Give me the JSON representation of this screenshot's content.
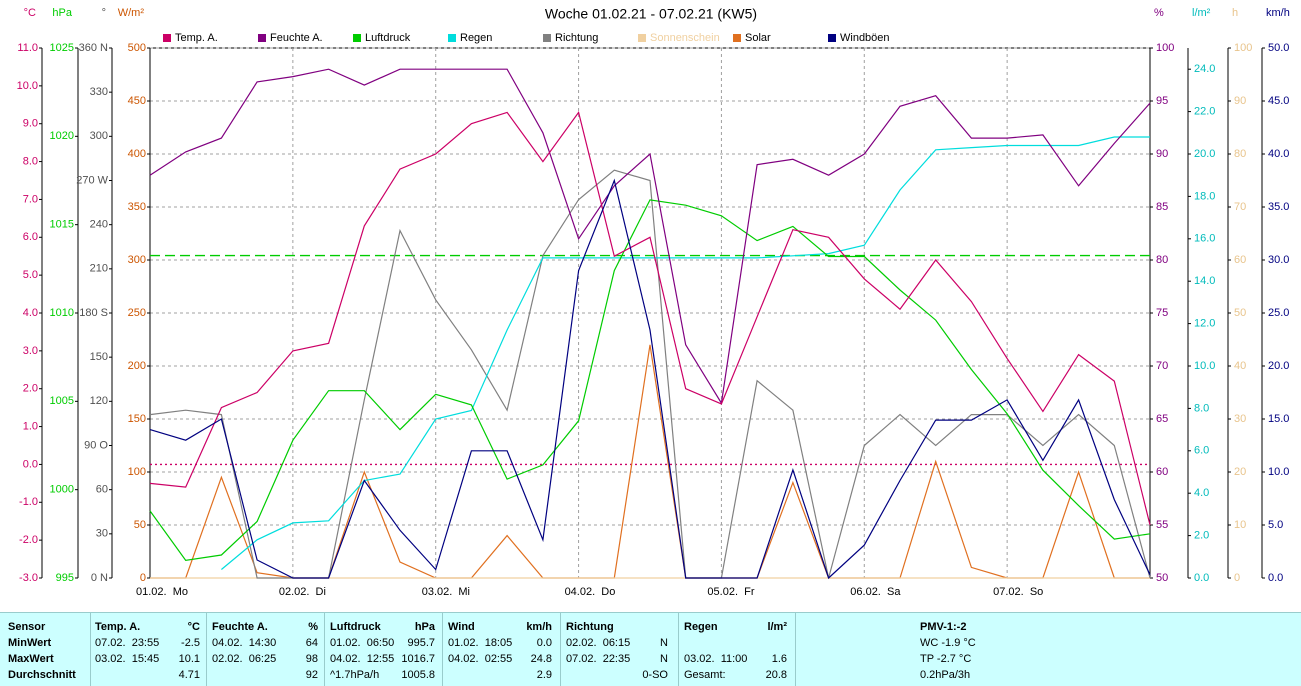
{
  "chart_data": {
    "type": "line",
    "title": "Woche 01.02.21 - 07.02.21 (KW5)",
    "x": [
      0,
      0.25,
      0.5,
      0.75,
      1,
      1.25,
      1.5,
      1.75,
      2,
      2.25,
      2.5,
      2.75,
      3,
      3.25,
      3.5,
      3.75,
      4,
      4.25,
      4.5,
      4.75,
      5,
      5.25,
      5.5,
      5.75,
      6,
      6.25,
      6.5,
      6.75,
      7
    ],
    "xlim": [
      0,
      7
    ],
    "xticks": [
      {
        "value": 0,
        "label": "01.02.  Mo"
      },
      {
        "value": 1,
        "label": "02.02.  Di"
      },
      {
        "value": 2,
        "label": "03.02.  Mi"
      },
      {
        "value": 3,
        "label": "04.02.  Do"
      },
      {
        "value": 4,
        "label": "05.02.  Fr"
      },
      {
        "value": 5,
        "label": "06.02.  Sa"
      },
      {
        "value": 6,
        "label": "07.02.  So"
      }
    ],
    "grid": true,
    "axes": [
      {
        "unit": "°C",
        "color": "#cc0066",
        "side": "left",
        "lim": [
          -3,
          11
        ],
        "ticks": [
          {
            "value": -3,
            "label": "-3.0"
          },
          {
            "value": -2,
            "label": "-2.0"
          },
          {
            "value": -1,
            "label": "-1.0"
          },
          {
            "value": 0,
            "label": "0.0"
          },
          {
            "value": 1,
            "label": "1.0"
          },
          {
            "value": 2,
            "label": "2.0"
          },
          {
            "value": 3,
            "label": "3.0"
          },
          {
            "value": 4,
            "label": "4.0"
          },
          {
            "value": 5,
            "label": "5.0"
          },
          {
            "value": 6,
            "label": "6.0"
          },
          {
            "value": 7,
            "label": "7.0"
          },
          {
            "value": 8,
            "label": "8.0"
          },
          {
            "value": 9,
            "label": "9.0"
          },
          {
            "value": 10,
            "label": "10.0"
          },
          {
            "value": 11,
            "label": "11.0"
          }
        ]
      },
      {
        "unit": "hPa",
        "color": "#00cc00",
        "side": "left",
        "lim": [
          995,
          1025
        ],
        "ticks": [
          995,
          1000,
          1005,
          1010,
          1015,
          1020,
          1025
        ]
      },
      {
        "unit": "°",
        "color": "#505050",
        "side": "left",
        "lim": [
          0,
          360
        ],
        "ticks": [
          {
            "value": 0,
            "label": "0 N"
          },
          30,
          60,
          {
            "value": 90,
            "label": "90 O"
          },
          120,
          150,
          {
            "value": 180,
            "label": "180 S"
          },
          210,
          240,
          {
            "value": 270,
            "label": "270 W"
          },
          300,
          330,
          {
            "value": 360,
            "label": "360 N"
          }
        ]
      },
      {
        "unit": "W/m²",
        "color": "#cc5500",
        "side": "left",
        "lim": [
          0,
          500
        ],
        "ticks": [
          0,
          50,
          100,
          150,
          200,
          250,
          300,
          350,
          400,
          450,
          500
        ]
      },
      {
        "unit": "%",
        "color": "#800080",
        "side": "right",
        "lim": [
          50,
          100
        ],
        "ticks": [
          50,
          55,
          60,
          65,
          70,
          75,
          80,
          85,
          90,
          95,
          100
        ]
      },
      {
        "unit": "l/m²",
        "color": "#00bbbb",
        "side": "right",
        "lim": [
          0,
          25
        ],
        "ticks": [
          {
            "value": 0,
            "label": "0.0"
          },
          {
            "value": 2,
            "label": "2.0"
          },
          {
            "value": 4,
            "label": "4.0"
          },
          {
            "value": 6,
            "label": "6.0"
          },
          {
            "value": 8,
            "label": "8.0"
          },
          {
            "value": 10,
            "label": "10.0"
          },
          {
            "value": 12,
            "label": "12.0"
          },
          {
            "value": 14,
            "label": "14.0"
          },
          {
            "value": 16,
            "label": "16.0"
          },
          {
            "value": 18,
            "label": "18.0"
          },
          {
            "value": 20,
            "label": "20.0"
          },
          {
            "value": 22,
            "label": "22.0"
          },
          {
            "value": 24,
            "label": "24.0"
          }
        ]
      },
      {
        "unit": "h",
        "color": "#e8c48c",
        "side": "right",
        "lim": [
          0,
          100
        ],
        "ticks": [
          0,
          10,
          20,
          30,
          40,
          50,
          60,
          70,
          80,
          90,
          100
        ]
      },
      {
        "unit": "km/h",
        "color": "#000080",
        "side": "right",
        "lim": [
          0,
          50
        ],
        "ticks": [
          {
            "value": 0,
            "label": "0.0"
          },
          {
            "value": 5,
            "label": "5.0"
          },
          {
            "value": 10,
            "label": "10.0"
          },
          {
            "value": 15,
            "label": "15.0"
          },
          {
            "value": 20,
            "label": "20.0"
          },
          {
            "value": 25,
            "label": "25.0"
          },
          {
            "value": 30,
            "label": "30.0"
          },
          {
            "value": 35,
            "label": "35.0"
          },
          {
            "value": 40,
            "label": "40.0"
          },
          {
            "value": 45,
            "label": "45.0"
          },
          {
            "value": 50,
            "label": "50.0"
          }
        ]
      }
    ],
    "reference_lines": [
      {
        "axis": 1,
        "value": 1013.25,
        "color": "#00cc00",
        "style": "dashed"
      },
      {
        "axis": 0,
        "value": 0,
        "color": "#cc0066",
        "style": "dotted"
      }
    ],
    "series": [
      {
        "name": "Temp. A.",
        "color": "#cc0066",
        "axis": 0,
        "values": [
          -0.5,
          -0.6,
          1.5,
          1.9,
          3.0,
          3.2,
          6.3,
          7.8,
          8.2,
          9.0,
          9.3,
          8.0,
          9.3,
          5.5,
          6.0,
          2.0,
          1.6,
          3.9,
          6.2,
          6.0,
          4.9,
          4.1,
          5.4,
          4.3,
          2.8,
          1.4,
          2.9,
          2.2,
          -1.6
        ]
      },
      {
        "name": "Feuchte A.",
        "color": "#800080",
        "axis": 4,
        "values": [
          88.0,
          90.2,
          91.5,
          96.8,
          97.3,
          98.0,
          96.5,
          98.0,
          98.0,
          98.0,
          98.0,
          92.0,
          82.0,
          87.0,
          90.0,
          72.0,
          66.5,
          89.0,
          89.5,
          88.0,
          90.0,
          94.5,
          95.5,
          91.5,
          91.5,
          91.8,
          87.0,
          91.0,
          94.8
        ]
      },
      {
        "name": "Luftdruck",
        "color": "#00cc00",
        "axis": 1,
        "values": [
          998.8,
          996.0,
          996.3,
          998.2,
          1002.8,
          1005.6,
          1005.6,
          1003.4,
          1005.4,
          1004.8,
          1000.6,
          1001.4,
          1003.9,
          1012.4,
          1016.4,
          1016.1,
          1015.5,
          1014.1,
          1014.9,
          1013.2,
          1013.2,
          1011.3,
          1009.6,
          1006.8,
          1004.3,
          1001.1,
          999.1,
          997.2,
          997.5
        ]
      },
      {
        "name": "Regen",
        "color": "#00dddd",
        "axis": 5,
        "values": [
          null,
          null,
          0.4,
          1.8,
          2.6,
          2.7,
          4.6,
          4.9,
          7.5,
          7.9,
          11.7,
          15.1,
          15.1,
          15.1,
          15.1,
          15.1,
          15.1,
          15.1,
          15.2,
          15.3,
          15.7,
          18.3,
          20.2,
          20.3,
          20.4,
          20.4,
          20.4,
          20.8,
          20.8
        ]
      },
      {
        "name": "Richtung",
        "color": "#808080",
        "axis": 2,
        "values": [
          111,
          114,
          111,
          0,
          0,
          0,
          121,
          236,
          189,
          155,
          114,
          219,
          257,
          277,
          270,
          0,
          0,
          134,
          114,
          0,
          90,
          111,
          90,
          111,
          111,
          90,
          111,
          90,
          0
        ]
      },
      {
        "name": "Sonnenschein",
        "color": "#f0d0a0",
        "axis": 6,
        "values": [
          0,
          0,
          0,
          0,
          0,
          0,
          0,
          0,
          0,
          0,
          0,
          0,
          0,
          0,
          0,
          0,
          0,
          0,
          0,
          0,
          0,
          0,
          0,
          0,
          0,
          0,
          0,
          0,
          0
        ]
      },
      {
        "name": "Solar",
        "color": "#e07020",
        "axis": 3,
        "values": [
          0,
          0,
          95,
          5,
          0,
          0,
          100,
          15,
          0,
          0,
          40,
          0,
          0,
          0,
          220,
          0,
          0,
          0,
          90,
          0,
          0,
          0,
          110,
          10,
          0,
          0,
          100,
          0,
          0
        ]
      },
      {
        "name": "Windböen",
        "color": "#000080",
        "axis": 7,
        "values": [
          14.0,
          13.0,
          15.0,
          1.7,
          0,
          0,
          9.2,
          4.5,
          0.8,
          12.0,
          12.0,
          3.6,
          29.0,
          37.5,
          23.4,
          0,
          0,
          0,
          10.2,
          0,
          3.1,
          9.2,
          14.9,
          14.9,
          16.8,
          11.1,
          16.8,
          7.4,
          0.3
        ]
      }
    ]
  },
  "table": {
    "header": [
      {
        "name": "Sensor"
      },
      {
        "name": "Temp. A.",
        "unit": "°C"
      },
      {
        "name": "Feuchte A.",
        "unit": "%"
      },
      {
        "name": "Luftdruck",
        "unit": "hPa"
      },
      {
        "name": "Wind",
        "unit": "km/h"
      },
      {
        "name": "Richtung"
      },
      {
        "name": "Regen",
        "unit": "l/m²"
      },
      {
        "name": "PMV-1:-2"
      }
    ],
    "rows": [
      {
        "label": "MinWert",
        "cells": [
          {
            "time": "07.02.  23:55",
            "value": "-2.5"
          },
          {
            "time": "04.02.  14:30",
            "value": "64"
          },
          {
            "time": "01.02.  06:50",
            "value": "995.7"
          },
          {
            "time": "01.02.  18:05",
            "value": "0.0"
          },
          {
            "time": "02.02.  06:15",
            "value": "N"
          },
          null,
          {
            "time": "WC -1.9 °C"
          }
        ]
      },
      {
        "label": "MaxWert",
        "cells": [
          {
            "time": "03.02.  15:45",
            "value": "10.1"
          },
          {
            "time": "02.02.  06:25",
            "value": "98"
          },
          {
            "time": "04.02.  12:55",
            "value": "1016.7"
          },
          {
            "time": "04.02.  02:55",
            "value": "24.8"
          },
          {
            "time": "07.02.  22:35",
            "value": "N"
          },
          {
            "time": "03.02.  11:00",
            "value": "1.6"
          },
          {
            "time": "TP -2.7 °C"
          }
        ]
      },
      {
        "label": "Durchschnitt",
        "cells": [
          {
            "value": "4.71"
          },
          {
            "value": "92"
          },
          {
            "time": "^1.7hPa/h",
            "value": "1005.8"
          },
          {
            "value": "2.9"
          },
          {
            "value": "0-SO"
          },
          {
            "time": "Gesamt:",
            "value": "20.8"
          },
          {
            "time": "0.2hPa/3h"
          }
        ]
      }
    ]
  }
}
